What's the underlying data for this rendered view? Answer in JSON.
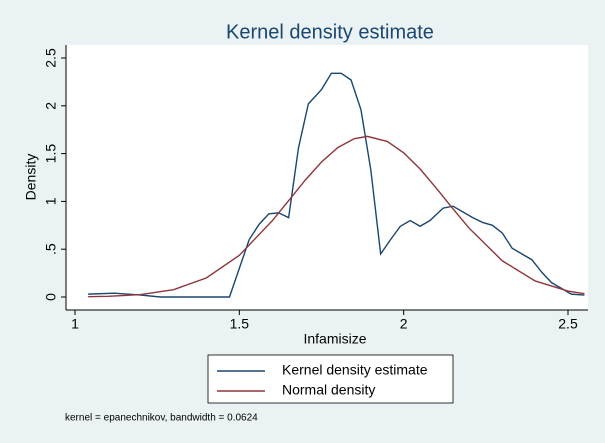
{
  "chart_data": {
    "type": "line",
    "title": "Kernel density estimate",
    "xlabel": "Infamisize",
    "ylabel": "Density",
    "note": "kernel = epanechnikov, bandwidth = 0.0624",
    "xlim": [
      1,
      2.5
    ],
    "xticks": [
      1,
      1.5,
      2,
      2.5
    ],
    "ylim": [
      0,
      2.5
    ],
    "yticks": [
      0,
      {
        "value": 0.5,
        "label": ".5"
      },
      1,
      1.5,
      2,
      2.5
    ],
    "grid": false,
    "legend": "bottom",
    "series": [
      {
        "name": "Kernel density estimate",
        "color": "#1a476f",
        "x": [
          1.04,
          1.12,
          1.2,
          1.26,
          1.47,
          1.53,
          1.56,
          1.59,
          1.62,
          1.65,
          1.68,
          1.71,
          1.75,
          1.78,
          1.81,
          1.84,
          1.87,
          1.9,
          1.93,
          1.96,
          1.99,
          2.02,
          2.05,
          2.08,
          2.12,
          2.15,
          2.18,
          2.21,
          2.24,
          2.27,
          2.3,
          2.33,
          2.36,
          2.39,
          2.42,
          2.45,
          2.48,
          2.51,
          2.55
        ],
        "values": [
          0.03,
          0.04,
          0.02,
          0,
          0,
          0.6,
          0.76,
          0.87,
          0.88,
          0.83,
          1.56,
          2.02,
          2.17,
          2.34,
          2.34,
          2.27,
          1.96,
          1.33,
          0.45,
          0.6,
          0.74,
          0.8,
          0.74,
          0.8,
          0.93,
          0.95,
          0.89,
          0.83,
          0.78,
          0.75,
          0.67,
          0.51,
          0.45,
          0.39,
          0.26,
          0.15,
          0.09,
          0.03,
          0.02
        ]
      },
      {
        "name": "Normal density",
        "color": "#90353b",
        "x": [
          1.04,
          1.1,
          1.2,
          1.3,
          1.4,
          1.5,
          1.6,
          1.65,
          1.7,
          1.75,
          1.8,
          1.85,
          1.89,
          1.95,
          2.0,
          2.05,
          2.1,
          2.15,
          2.2,
          2.3,
          2.4,
          2.5,
          2.55
        ],
        "values": [
          0.003,
          0.007,
          0.025,
          0.077,
          0.2,
          0.436,
          0.797,
          1.008,
          1.22,
          1.412,
          1.564,
          1.656,
          1.68,
          1.627,
          1.509,
          1.339,
          1.136,
          0.923,
          0.717,
          0.379,
          0.168,
          0.062,
          0.035
        ]
      }
    ]
  }
}
